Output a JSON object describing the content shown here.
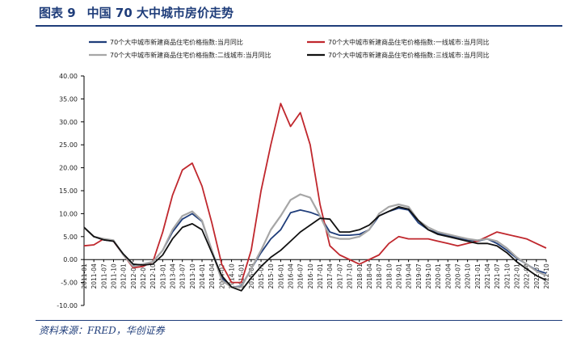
{
  "figure": {
    "label": "图表 9",
    "title": "中国 70 大中城市房价走势",
    "source": "资料来源：FRED，华创证券"
  },
  "chart_data": {
    "type": "line",
    "ylim": [
      -10,
      40
    ],
    "yticks": [
      -10,
      -5,
      0,
      5,
      10,
      15,
      20,
      25,
      30,
      35,
      40
    ],
    "ytick_labels": [
      "-10.00",
      "-5.00",
      "0.00",
      "5.00",
      "10.00",
      "15.00",
      "20.00",
      "25.00",
      "30.00",
      "35.00",
      "40.00"
    ],
    "x_labels": [
      "2011-01",
      "2011-04",
      "2011-07",
      "2011-10",
      "2012-01",
      "2012-04",
      "2012-07",
      "2012-10",
      "2013-01",
      "2013-04",
      "2013-07",
      "2013-10",
      "2014-01",
      "2014-04",
      "2014-07",
      "2014-10",
      "2015-01",
      "2015-04",
      "2015-07",
      "2015-10",
      "2016-01",
      "2016-04",
      "2016-07",
      "2016-10",
      "2017-01",
      "2017-04",
      "2017-07",
      "2017-10",
      "2018-01",
      "2018-04",
      "2018-07",
      "2018-10",
      "2019-01",
      "2019-04",
      "2019-07",
      "2019-10",
      "2020-01",
      "2020-04",
      "2020-07",
      "2020-10",
      "2021-01",
      "2021-04",
      "2021-07",
      "2021-10",
      "2022-01",
      "2022-04",
      "2022-07",
      "2022-10"
    ],
    "legend_position": "top",
    "grid": false,
    "series": [
      {
        "name": "70个大中城市新建商品住宅价格指数:当月同比",
        "color": "#1f3d7a",
        "width": 1.8,
        "values": [
          7.0,
          5.0,
          4.3,
          4.0,
          1.0,
          -1.3,
          -1.0,
          -0.5,
          2.0,
          6.0,
          8.8,
          10.0,
          8.3,
          2.0,
          -4.0,
          -6.0,
          -5.8,
          -2.0,
          1.5,
          4.5,
          6.5,
          10.2,
          10.8,
          10.3,
          9.5,
          6.0,
          5.3,
          5.3,
          5.5,
          6.5,
          9.5,
          10.5,
          11.2,
          10.8,
          8.0,
          6.5,
          5.8,
          5.2,
          4.8,
          4.3,
          4.0,
          4.5,
          3.5,
          2.0,
          0.3,
          -1.0,
          -2.3,
          -3.0
        ]
      },
      {
        "name": "70个大中城市新建商品住宅价格指数:一线城市:当月同比",
        "color": "#c0272d",
        "width": 1.8,
        "values": [
          3.0,
          3.2,
          4.5,
          4.0,
          1.0,
          -1.8,
          -1.5,
          -0.5,
          6.0,
          14.0,
          19.5,
          21.0,
          16.0,
          8.0,
          -1.0,
          -5.0,
          -5.0,
          2.0,
          15.0,
          25.0,
          34.0,
          29.0,
          32.0,
          25.0,
          12.0,
          3.0,
          1.0,
          0.0,
          -1.0,
          0.0,
          1.0,
          3.5,
          5.0,
          4.5,
          4.5,
          4.5,
          4.0,
          3.5,
          3.0,
          3.5,
          4.0,
          5.0,
          6.0,
          5.5,
          5.0,
          4.5,
          3.5,
          2.5
        ]
      },
      {
        "name": "70个大中城市新建商品住宅价格指数:二线城市:当月同比",
        "color": "#a6a6a6",
        "width": 2.2,
        "values": [
          7.0,
          5.0,
          4.5,
          4.2,
          1.0,
          -1.5,
          -1.0,
          -0.5,
          2.0,
          6.5,
          9.5,
          10.5,
          8.5,
          2.0,
          -4.5,
          -6.0,
          -6.0,
          -2.0,
          2.0,
          6.5,
          9.5,
          13.0,
          14.2,
          13.5,
          9.5,
          5.0,
          4.5,
          4.5,
          5.0,
          6.5,
          10.0,
          11.5,
          12.0,
          11.5,
          8.5,
          7.0,
          6.0,
          5.5,
          5.0,
          4.5,
          4.2,
          4.5,
          4.0,
          2.5,
          0.5,
          -1.0,
          -2.5,
          -3.5
        ]
      },
      {
        "name": "70个大中城市新建商品住宅价格指数:三线城市:当月同比",
        "color": "#111111",
        "width": 1.8,
        "values": [
          7.0,
          5.0,
          4.3,
          4.0,
          1.2,
          -1.0,
          -1.2,
          -1.0,
          1.0,
          4.5,
          7.0,
          7.8,
          6.5,
          1.5,
          -3.5,
          -6.0,
          -6.8,
          -4.0,
          -1.5,
          0.5,
          2.0,
          4.0,
          6.0,
          7.5,
          9.0,
          8.8,
          6.0,
          6.0,
          6.5,
          7.5,
          9.5,
          10.5,
          11.5,
          11.0,
          8.5,
          6.5,
          5.5,
          5.0,
          4.5,
          4.0,
          3.5,
          3.5,
          3.0,
          1.5,
          -0.5,
          -2.0,
          -3.5,
          -4.5
        ]
      }
    ]
  }
}
